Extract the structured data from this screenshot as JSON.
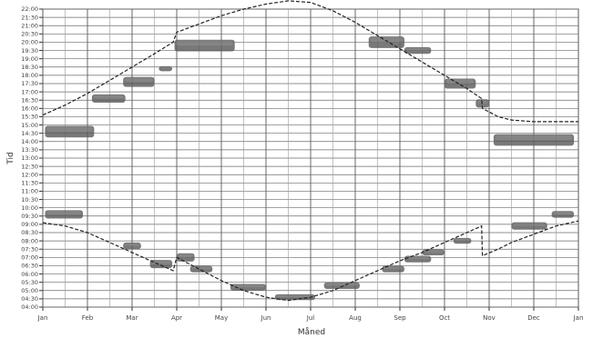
{
  "chart_data": {
    "type": "line",
    "xlabel": "Måned",
    "ylabel": "Tid",
    "x_ticks": [
      "Jan",
      "Feb",
      "Mar",
      "Apr",
      "May",
      "Jun",
      "Jul",
      "Aug",
      "Sep",
      "Oct",
      "Nov",
      "Dec",
      "Jan"
    ],
    "y_ticks": [
      "04:00",
      "04:30",
      "05:00",
      "05:30",
      "06:00",
      "06:30",
      "07:00",
      "07:30",
      "08:00",
      "08:30",
      "09:00",
      "09:30",
      "10:00",
      "10:30",
      "11:00",
      "11:30",
      "12:00",
      "12:30",
      "13:00",
      "13:30",
      "14:00",
      "14:30",
      "15:00",
      "15:30",
      "16:00",
      "16:30",
      "17:00",
      "17:30",
      "18:00",
      "18:30",
      "19:00",
      "19:30",
      "20:00",
      "20:30",
      "21:00",
      "21:30",
      "22:00"
    ],
    "ylim": [
      4.0,
      22.0
    ],
    "xlim": [
      0,
      12
    ],
    "grid": true,
    "series": [
      {
        "role": "sunset",
        "points": [
          [
            0,
            15.6
          ],
          [
            0.5,
            16.2
          ],
          [
            1,
            16.9
          ],
          [
            1.5,
            17.7
          ],
          [
            2,
            18.5
          ],
          [
            2.5,
            19.3
          ],
          [
            2.92,
            20.0
          ],
          [
            3.0,
            20.6
          ],
          [
            3.5,
            21.1
          ],
          [
            4,
            21.6
          ],
          [
            4.5,
            22.0
          ],
          [
            5,
            22.3
          ],
          [
            5.5,
            22.5
          ],
          [
            6,
            22.4
          ],
          [
            6.5,
            21.9
          ],
          [
            7,
            21.2
          ],
          [
            7.5,
            20.4
          ],
          [
            8,
            19.6
          ],
          [
            8.5,
            18.8
          ],
          [
            9,
            18.0
          ],
          [
            9.5,
            17.2
          ],
          [
            9.83,
            16.6
          ],
          [
            9.85,
            16.0
          ],
          [
            10.2,
            15.5
          ],
          [
            10.5,
            15.3
          ],
          [
            11,
            15.2
          ],
          [
            12,
            15.2
          ]
        ]
      },
      {
        "role": "sunrise",
        "points": [
          [
            0,
            9.1
          ],
          [
            0.5,
            8.9
          ],
          [
            1,
            8.5
          ],
          [
            1.5,
            7.9
          ],
          [
            2,
            7.3
          ],
          [
            2.5,
            6.7
          ],
          [
            2.92,
            6.2
          ],
          [
            3.0,
            7.0
          ],
          [
            3.5,
            6.3
          ],
          [
            4,
            5.6
          ],
          [
            4.5,
            5.0
          ],
          [
            5,
            4.6
          ],
          [
            5.5,
            4.4
          ],
          [
            6,
            4.6
          ],
          [
            6.5,
            5.0
          ],
          [
            7,
            5.6
          ],
          [
            7.5,
            6.2
          ],
          [
            8,
            6.8
          ],
          [
            8.5,
            7.3
          ],
          [
            9,
            7.9
          ],
          [
            9.5,
            8.5
          ],
          [
            9.83,
            8.9
          ],
          [
            9.85,
            7.1
          ],
          [
            10.2,
            7.5
          ],
          [
            10.5,
            7.9
          ],
          [
            11,
            8.4
          ],
          [
            11.5,
            8.9
          ],
          [
            12,
            9.2
          ]
        ]
      }
    ],
    "observations": [
      {
        "x0": 0.05,
        "x1": 1.15,
        "y": 14.6,
        "h": 0.7
      },
      {
        "x0": 1.1,
        "x1": 1.85,
        "y": 16.6,
        "h": 0.5
      },
      {
        "x0": 1.8,
        "x1": 2.5,
        "y": 17.6,
        "h": 0.6
      },
      {
        "x0": 2.6,
        "x1": 2.9,
        "y": 18.4,
        "h": 0.3
      },
      {
        "x0": 2.95,
        "x1": 4.3,
        "y": 19.8,
        "h": 0.7
      },
      {
        "x0": 7.3,
        "x1": 8.1,
        "y": 20.0,
        "h": 0.7
      },
      {
        "x0": 8.1,
        "x1": 8.7,
        "y": 19.5,
        "h": 0.4
      },
      {
        "x0": 9.0,
        "x1": 9.7,
        "y": 17.5,
        "h": 0.6
      },
      {
        "x0": 9.7,
        "x1": 10.0,
        "y": 16.3,
        "h": 0.5
      },
      {
        "x0": 10.1,
        "x1": 11.9,
        "y": 14.1,
        "h": 0.7
      },
      {
        "x0": 0.05,
        "x1": 0.9,
        "y": 9.6,
        "h": 0.5
      },
      {
        "x0": 1.8,
        "x1": 2.2,
        "y": 7.7,
        "h": 0.4
      },
      {
        "x0": 2.4,
        "x1": 2.9,
        "y": 6.6,
        "h": 0.5
      },
      {
        "x0": 3.0,
        "x1": 3.4,
        "y": 7.0,
        "h": 0.5
      },
      {
        "x0": 3.3,
        "x1": 3.8,
        "y": 6.3,
        "h": 0.4
      },
      {
        "x0": 4.2,
        "x1": 5.0,
        "y": 5.2,
        "h": 0.4
      },
      {
        "x0": 5.2,
        "x1": 6.1,
        "y": 4.6,
        "h": 0.35
      },
      {
        "x0": 6.3,
        "x1": 7.1,
        "y": 5.3,
        "h": 0.4
      },
      {
        "x0": 7.6,
        "x1": 8.1,
        "y": 6.3,
        "h": 0.4
      },
      {
        "x0": 8.1,
        "x1": 8.7,
        "y": 6.9,
        "h": 0.4
      },
      {
        "x0": 8.5,
        "x1": 9.0,
        "y": 7.3,
        "h": 0.35
      },
      {
        "x0": 9.2,
        "x1": 9.6,
        "y": 8.0,
        "h": 0.35
      },
      {
        "x0": 10.5,
        "x1": 11.3,
        "y": 8.9,
        "h": 0.45
      },
      {
        "x0": 11.4,
        "x1": 11.9,
        "y": 9.6,
        "h": 0.4
      }
    ]
  }
}
